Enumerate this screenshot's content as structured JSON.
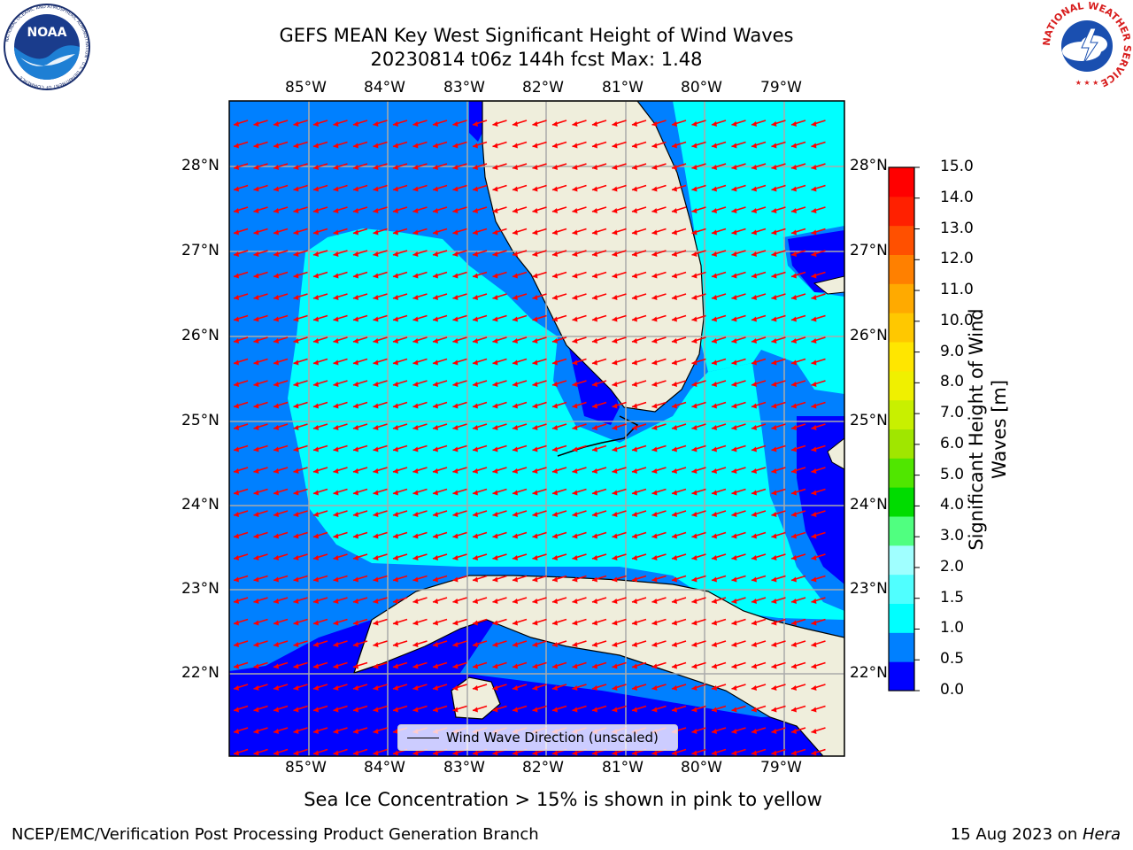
{
  "title": {
    "line1": "GEFS MEAN Key West Significant Height of Wind Waves",
    "line2": "20230814 t06z 144h fcst   Max: 1.48"
  },
  "logos": {
    "noaa": {
      "label": "NOAA",
      "ring_text": "NATIONAL OCEANIC AND ATMOSPHERIC ADMINISTRATION · U.S. DEPARTMENT OF COMMERCE"
    },
    "nws": {
      "ring_text": "NATIONAL WEATHER SERVICE"
    }
  },
  "map": {
    "lon_labels": [
      "85°W",
      "84°W",
      "83°W",
      "82°W",
      "81°W",
      "80°W",
      "79°W"
    ],
    "lat_labels": [
      "28°N",
      "27°N",
      "26°N",
      "25°N",
      "24°N",
      "23°N",
      "22°N"
    ],
    "legend_label": "Wind Wave Direction (unscaled)",
    "arrow_color": "#ff0000"
  },
  "colorbar": {
    "title_line1": "Significant Height of Wind",
    "title_line2": "Waves [m]",
    "ticks": [
      "15.0",
      "14.0",
      "13.0",
      "12.0",
      "11.0",
      "10.0",
      "9.0",
      "8.0",
      "7.0",
      "6.0",
      "5.0",
      "4.0",
      "3.0",
      "2.0",
      "1.5",
      "1.0",
      "0.5",
      "0.0"
    ],
    "colors": [
      "#0000ff",
      "#0080ff",
      "#00ffff",
      "#50ffff",
      "#a0ffff",
      "#50ff80",
      "#00dc00",
      "#50e600",
      "#a0e600",
      "#c8f000",
      "#f0f000",
      "#ffe600",
      "#ffc800",
      "#ffaa00",
      "#ff8000",
      "#ff5000",
      "#ff2000",
      "#ff0000"
    ]
  },
  "caption": "Sea Ice Concentration > 15% is shown in pink to yellow",
  "footer": {
    "left": "NCEP/EMC/Verification Post Processing Product Generation Branch",
    "right_date": "15 Aug 2023 on ",
    "right_host": "Hera"
  }
}
